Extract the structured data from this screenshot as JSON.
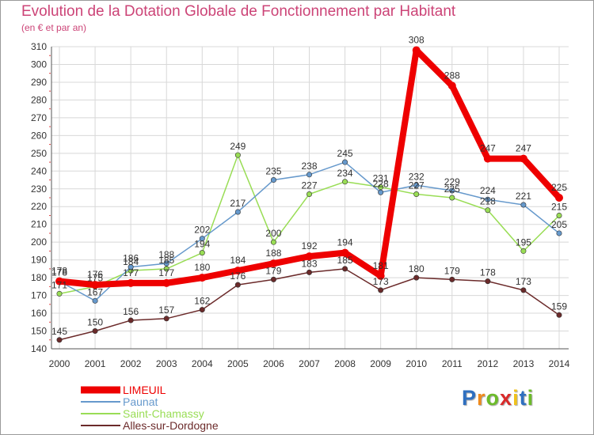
{
  "chart_data": {
    "type": "line",
    "title": "Evolution de la Dotation Globale de Fonctionnement par Habitant",
    "subtitle": "(en € et par an)",
    "xlabel": "",
    "ylabel": "",
    "categories": [
      "2000",
      "2001",
      "2002",
      "2003",
      "2004",
      "2005",
      "2006",
      "2007",
      "2008",
      "2009",
      "2010",
      "2011",
      "2012",
      "2013",
      "2014"
    ],
    "ylim": [
      140,
      310
    ],
    "yticks": [
      140,
      150,
      160,
      170,
      180,
      190,
      200,
      210,
      220,
      230,
      240,
      250,
      260,
      270,
      280,
      290,
      300,
      310
    ],
    "grid": true,
    "legend_position": "bottom-left",
    "series": [
      {
        "name": "Alles-sur-Dordogne",
        "color": "#6b2a2a",
        "values": [
          145,
          150,
          156,
          157,
          162,
          176,
          179,
          183,
          185,
          173,
          180,
          179,
          178,
          173,
          159
        ]
      },
      {
        "name": "Saint-Chamassy",
        "color": "#99dd55",
        "values": [
          171,
          175,
          184,
          185,
          194,
          249,
          200,
          227,
          234,
          231,
          227,
          225,
          218,
          195,
          215
        ]
      },
      {
        "name": "Paunat",
        "color": "#6699cc",
        "values": [
          178,
          167,
          186,
          188,
          202,
          217,
          235,
          238,
          245,
          228,
          232,
          229,
          224,
          221,
          205
        ]
      },
      {
        "name": "LIMEUIL",
        "color": "#ee0000",
        "values": [
          178,
          176,
          177,
          177,
          180,
          184,
          188,
          192,
          194,
          181,
          308,
          288,
          247,
          247,
          225
        ]
      }
    ],
    "legend": [
      "LIMEUIL",
      "Paunat",
      "Saint-Chamassy",
      "Alles-sur-Dordogne"
    ]
  },
  "brand": {
    "letters": [
      "P",
      "r",
      "o",
      "x",
      "i",
      "t",
      "i"
    ],
    "colors": [
      "#2e6fc0",
      "#f08a1c",
      "#6cbb2a",
      "#d92a2a",
      "#f0c21c",
      "#2e6fc0",
      "#6cbb2a"
    ]
  }
}
